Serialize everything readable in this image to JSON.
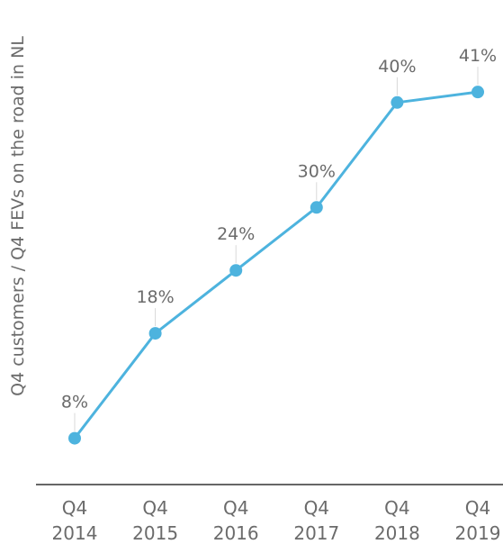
{
  "chart_data": {
    "type": "line",
    "title": "",
    "xlabel": "",
    "ylabel": "Q4 customers / Q4 FEVs on the road in NL",
    "categories": [
      [
        "Q4",
        "2014"
      ],
      [
        "Q4",
        "2015"
      ],
      [
        "Q4",
        "2016"
      ],
      [
        "Q4",
        "2017"
      ],
      [
        "Q4",
        "2018"
      ],
      [
        "Q4",
        "2019"
      ]
    ],
    "values": [
      8,
      18,
      24,
      30,
      40,
      41
    ],
    "data_labels": [
      "8%",
      "18%",
      "24%",
      "30%",
      "40%",
      "41%"
    ],
    "unit": "%",
    "ylim": [
      0,
      45
    ],
    "grid": false,
    "legend": "none",
    "colors": {
      "line": "#4db3de",
      "text": "#6b6b6b",
      "axis": "#333333"
    }
  }
}
